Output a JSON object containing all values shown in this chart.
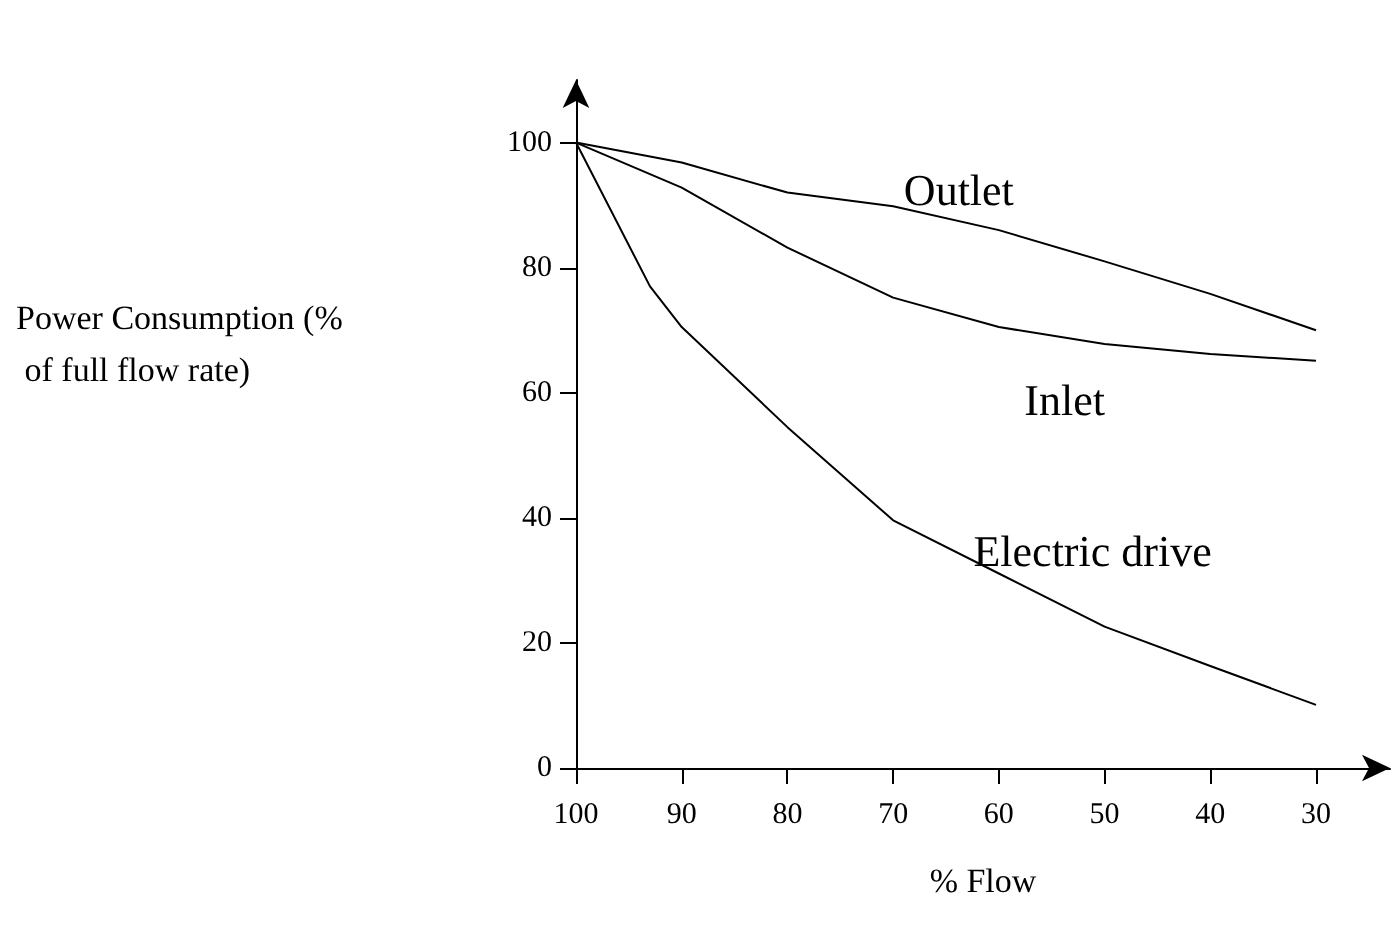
{
  "chart_data": {
    "type": "line",
    "xlabel": "% Flow",
    "ylabel": "Power Consumption (% of full flow rate)",
    "xlim": [
      100,
      23
    ],
    "xticks": [
      100,
      90,
      80,
      70,
      60,
      50,
      40,
      30
    ],
    "ylim": [
      0,
      110
    ],
    "yticks": [
      0,
      20,
      40,
      60,
      80,
      100
    ],
    "grid": false,
    "legend": false,
    "marker": "none",
    "line_style": "solid",
    "series": [
      {
        "name": "Outlet",
        "color": "#000000",
        "x": [
          100,
          90,
          80,
          70,
          60,
          50,
          40,
          30
        ],
        "values": [
          100,
          96.8,
          92,
          89.8,
          86,
          81,
          75.8,
          70
        ]
      },
      {
        "name": "Inlet",
        "color": "#000000",
        "x": [
          100,
          90,
          80,
          70,
          60,
          50,
          40,
          30
        ],
        "values": [
          100,
          92.8,
          83.2,
          75.2,
          70.5,
          67.8,
          66.2,
          65.1
        ]
      },
      {
        "name": "Electric drive",
        "color": "#000000",
        "x": [
          100,
          93,
          90,
          80,
          70,
          60,
          50,
          40,
          30
        ],
        "values": [
          100,
          77,
          70.5,
          54.5,
          39.6,
          31.1,
          22.6,
          16.3,
          10.1
        ]
      }
    ]
  }
}
